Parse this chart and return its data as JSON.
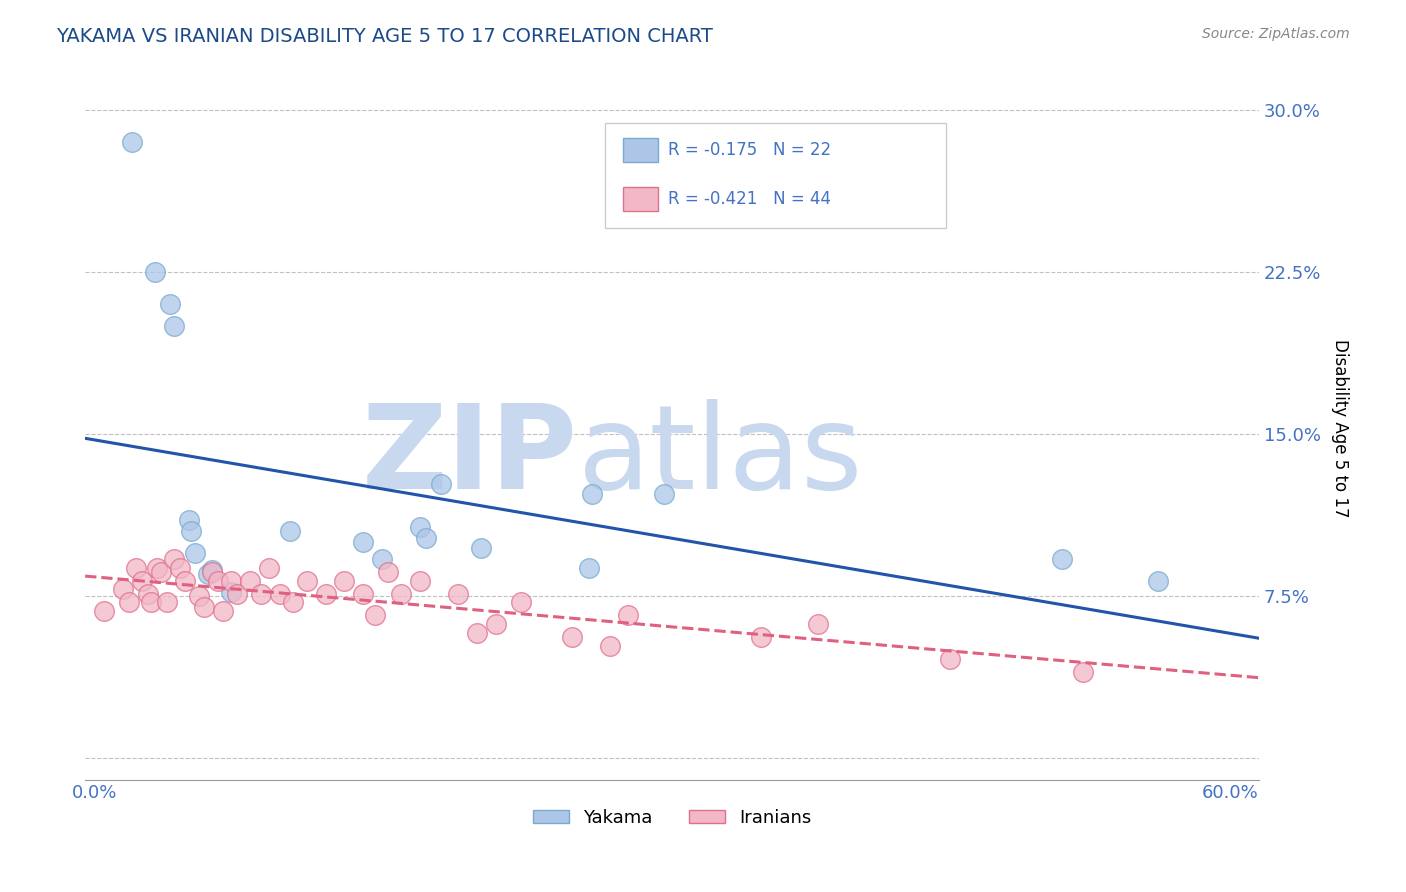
{
  "title": "YAKAMA VS IRANIAN DISABILITY AGE 5 TO 17 CORRELATION CHART",
  "source_text": "Source: ZipAtlas.com",
  "ylabel": "Disability Age 5 to 17",
  "xlim": [
    -0.005,
    0.615
  ],
  "ylim": [
    -0.01,
    0.315
  ],
  "xticks": [
    0.0,
    0.1,
    0.2,
    0.3,
    0.4,
    0.5,
    0.6
  ],
  "xticklabels": [
    "0.0%",
    "",
    "",
    "",
    "",
    "",
    "60.0%"
  ],
  "yticks": [
    0.0,
    0.075,
    0.15,
    0.225,
    0.3
  ],
  "yticklabels": [
    "",
    "7.5%",
    "15.0%",
    "22.5%",
    "30.0%"
  ],
  "title_color": "#1a4a8a",
  "axis_color": "#4472c4",
  "grid_color": "#bbbbbb",
  "watermark_zip_color": "#c8d8ee",
  "watermark_atlas_color": "#c8d8ee",
  "legend_text_color": "#4472c4",
  "series": [
    {
      "name": "Yakama",
      "color": "#adc6e8",
      "edge_color": "#7aaad0",
      "R": -0.175,
      "N": 22,
      "line_color": "#2255aa",
      "line_style": "-",
      "x": [
        0.02,
        0.032,
        0.04,
        0.042,
        0.05,
        0.051,
        0.053,
        0.06,
        0.062,
        0.072,
        0.103,
        0.142,
        0.152,
        0.172,
        0.175,
        0.183,
        0.204,
        0.261,
        0.263,
        0.301,
        0.511,
        0.562
      ],
      "y": [
        0.285,
        0.225,
        0.21,
        0.2,
        0.11,
        0.105,
        0.095,
        0.085,
        0.087,
        0.077,
        0.105,
        0.1,
        0.092,
        0.107,
        0.102,
        0.127,
        0.097,
        0.088,
        0.122,
        0.122,
        0.092,
        0.082
      ]
    },
    {
      "name": "Iranians",
      "color": "#f2b8c6",
      "edge_color": "#e07090",
      "R": -0.421,
      "N": 44,
      "line_color": "#e06080",
      "line_style": "--",
      "x": [
        0.005,
        0.015,
        0.018,
        0.022,
        0.025,
        0.028,
        0.03,
        0.033,
        0.035,
        0.038,
        0.042,
        0.045,
        0.048,
        0.055,
        0.058,
        0.062,
        0.065,
        0.068,
        0.072,
        0.075,
        0.082,
        0.088,
        0.092,
        0.098,
        0.105,
        0.112,
        0.122,
        0.132,
        0.142,
        0.148,
        0.155,
        0.162,
        0.172,
        0.192,
        0.202,
        0.212,
        0.225,
        0.252,
        0.272,
        0.282,
        0.352,
        0.382,
        0.452,
        0.522
      ],
      "y": [
        0.068,
        0.078,
        0.072,
        0.088,
        0.082,
        0.076,
        0.072,
        0.088,
        0.086,
        0.072,
        0.092,
        0.088,
        0.082,
        0.075,
        0.07,
        0.086,
        0.082,
        0.068,
        0.082,
        0.076,
        0.082,
        0.076,
        0.088,
        0.076,
        0.072,
        0.082,
        0.076,
        0.082,
        0.076,
        0.066,
        0.086,
        0.076,
        0.082,
        0.076,
        0.058,
        0.062,
        0.072,
        0.056,
        0.052,
        0.066,
        0.056,
        0.062,
        0.046,
        0.04
      ]
    }
  ]
}
